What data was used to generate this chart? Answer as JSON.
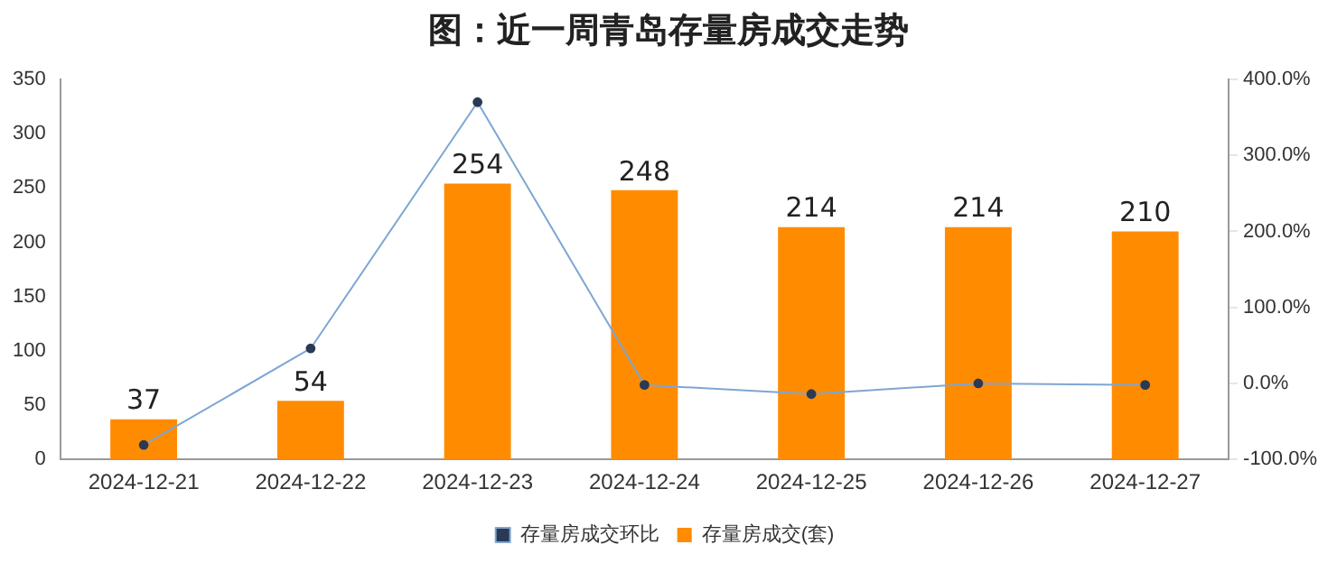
{
  "chart_data": {
    "type": "bar",
    "title": "图：近一周青岛存量房成交走势",
    "categories": [
      "2024-12-21",
      "2024-12-22",
      "2024-12-23",
      "2024-12-24",
      "2024-12-25",
      "2024-12-26",
      "2024-12-27"
    ],
    "series": [
      {
        "name": "存量房成交(套)",
        "color": "#ff8c00",
        "values": [
          37,
          54,
          254,
          248,
          214,
          214,
          210
        ],
        "value_labels": [
          "37",
          "54",
          "254",
          "248",
          "214",
          "214",
          "210"
        ]
      },
      {
        "name": "存量房成交环比",
        "type": "line",
        "axis": "y2",
        "color": "#7ea6d3",
        "values": [
          -81,
          46,
          370,
          -2,
          -14,
          0,
          -2
        ]
      }
    ],
    "ylim": [
      0,
      350
    ],
    "yticks": [
      0,
      50,
      100,
      150,
      200,
      250,
      300,
      350
    ],
    "y2lim": [
      -100,
      400
    ],
    "y2ticks": [
      {
        "value": -100,
        "label": "-100.0%"
      },
      {
        "value": 0,
        "label": "0.0%"
      },
      {
        "value": 100,
        "label": "100.0%"
      },
      {
        "value": 200,
        "label": "200.0%"
      },
      {
        "value": 300,
        "label": "300.0%"
      },
      {
        "value": 400,
        "label": "400.0%"
      }
    ],
    "grid": false,
    "legend": "bottom",
    "marker": "circle",
    "line_style": "solid"
  }
}
